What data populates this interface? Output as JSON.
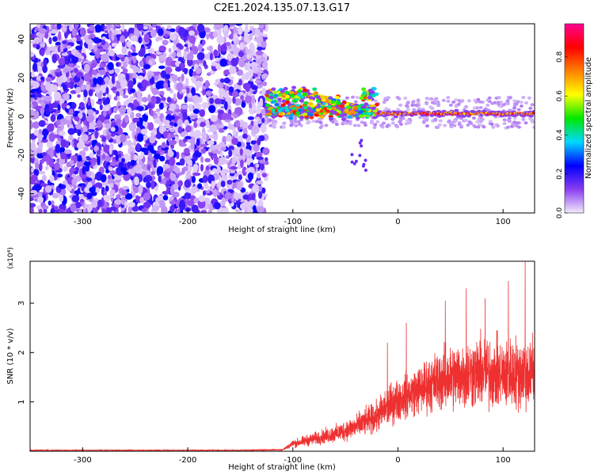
{
  "figure": {
    "title": "C2E1.2024.135.07.13.G17"
  },
  "chart_data": [
    {
      "type": "heatmap",
      "xlabel": "Height of straight line (km)",
      "ylabel": "Frequency (Hz)",
      "xlim": [
        -350,
        130
      ],
      "ylim": [
        -50,
        48
      ],
      "x_ticks": [
        {
          "value": -300,
          "label": "-300"
        },
        {
          "value": -200,
          "label": "-200"
        },
        {
          "value": -100,
          "label": "-100"
        },
        {
          "value": 0,
          "label": "0"
        },
        {
          "value": 100,
          "label": "100"
        }
      ],
      "y_ticks": [
        {
          "value": 40,
          "label": "40"
        },
        {
          "value": 20,
          "label": "20"
        },
        {
          "value": 0,
          "label": "0"
        },
        {
          "value": -20,
          "label": "-20"
        },
        {
          "value": -40,
          "label": "-40"
        }
      ],
      "colorbar": {
        "label": "Normalized spectral amplitude",
        "range": [
          0,
          0.97
        ],
        "ticks": [
          {
            "value": 0.0,
            "label": "0.0"
          },
          {
            "value": 0.2,
            "label": "0.2"
          },
          {
            "value": 0.4,
            "label": "0.4"
          },
          {
            "value": 0.6,
            "label": "0.6"
          },
          {
            "value": 0.8,
            "label": "0.8"
          }
        ],
        "colors": [
          "#f3eafb",
          "#8a3df0",
          "#0000ff",
          "#00d8ff",
          "#00e800",
          "#ffff00",
          "#ff8000",
          "#ff0000",
          "#ff0090"
        ]
      },
      "regions": [
        {
          "x_range": [
            -350,
            -125
          ],
          "y_range": [
            -50,
            48
          ],
          "amplitude": [
            0.02,
            0.25
          ],
          "pattern": "scattered noise"
        },
        {
          "x_range": [
            -125,
            -20
          ],
          "y_range": [
            -10,
            16
          ],
          "amplitude": [
            0.3,
            0.85
          ],
          "pattern": "signal onset, tilted streaks"
        },
        {
          "x_range": [
            -20,
            130
          ],
          "y_range": [
            -1,
            4
          ],
          "center_frequency": 1.5,
          "amplitude": [
            0.6,
            0.9
          ],
          "pattern": "narrow band"
        }
      ],
      "grid": false
    },
    {
      "type": "line",
      "xlabel": "Height of straight line (km)",
      "ylabel": "SNR (10 * v/v)",
      "multiplier": "(x10⁴)",
      "xlim": [
        -350,
        130
      ],
      "ylim": [
        0,
        3.85
      ],
      "x_ticks": [
        {
          "value": -300,
          "label": "-300"
        },
        {
          "value": -200,
          "label": "-200"
        },
        {
          "value": -100,
          "label": "-100"
        },
        {
          "value": 0,
          "label": "0"
        },
        {
          "value": 100,
          "label": "100"
        }
      ],
      "y_ticks": [
        {
          "value": 1,
          "label": "1"
        },
        {
          "value": 2,
          "label": "2"
        },
        {
          "value": 3,
          "label": "3"
        }
      ],
      "series": [
        {
          "color": "#ee3030",
          "envelope": {
            "x": [
              -350,
              -150,
              -110,
              -100,
              -80,
              -60,
              -40,
              -20,
              -10,
              0,
              20,
              40,
              60,
              80,
              100,
              120,
              130
            ],
            "mean": [
              0.02,
              0.02,
              0.03,
              0.15,
              0.25,
              0.35,
              0.5,
              0.7,
              0.9,
              1.05,
              1.25,
              1.45,
              1.55,
              1.6,
              1.55,
              1.6,
              1.5
            ],
            "noise": [
              0.01,
              0.01,
              0.02,
              0.12,
              0.18,
              0.25,
              0.35,
              0.45,
              0.6,
              0.6,
              0.7,
              0.9,
              1.0,
              1.05,
              1.0,
              1.1,
              0.9
            ]
          },
          "peaks": [
            {
              "x": -10,
              "y": 2.2
            },
            {
              "x": 8,
              "y": 2.6
            },
            {
              "x": 45,
              "y": 3.05
            },
            {
              "x": 65,
              "y": 3.3
            },
            {
              "x": 83,
              "y": 3.1
            },
            {
              "x": 105,
              "y": 3.45
            },
            {
              "x": 121,
              "y": 3.85
            },
            {
              "x": 128,
              "y": 2.4
            }
          ]
        }
      ],
      "grid": false
    }
  ]
}
